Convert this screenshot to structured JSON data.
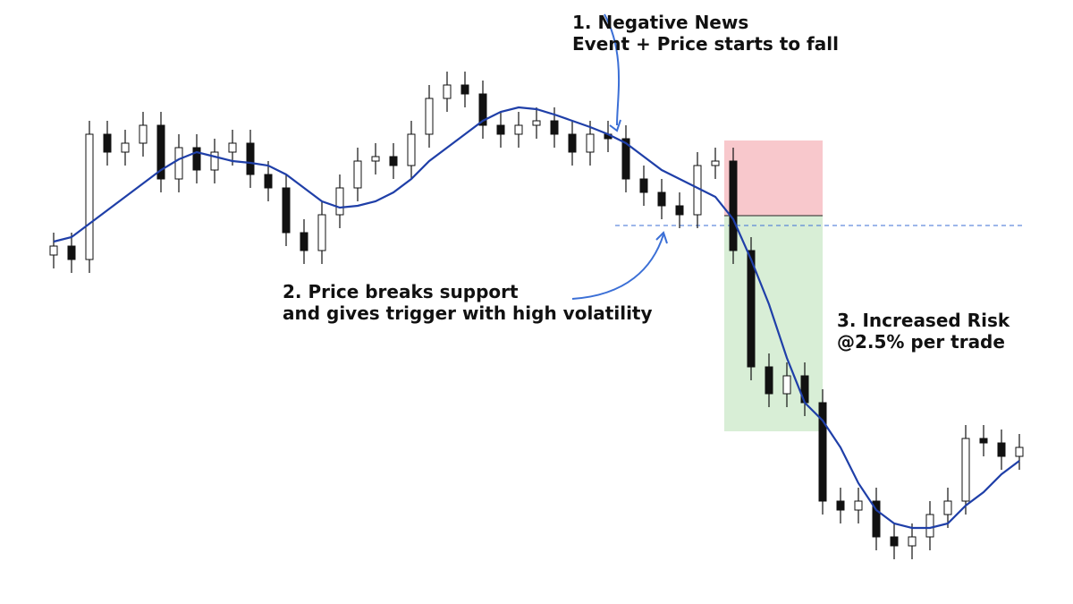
{
  "chart_data": {
    "type": "candlestick",
    "open": [
      390,
      400,
      385,
      525,
      505,
      515,
      535,
      475,
      510,
      485,
      505,
      515,
      480,
      465,
      415,
      395,
      435,
      465,
      495,
      500,
      490,
      525,
      565,
      580,
      570,
      535,
      525,
      535,
      540,
      525,
      505,
      525,
      520,
      475,
      460,
      445,
      435,
      490,
      495,
      395,
      265,
      235,
      255,
      225,
      115,
      105,
      115,
      75,
      65,
      75,
      100,
      115,
      185,
      180,
      165
    ],
    "high": [
      415,
      415,
      540,
      540,
      530,
      550,
      550,
      525,
      525,
      520,
      530,
      530,
      495,
      480,
      430,
      450,
      480,
      510,
      515,
      515,
      540,
      580,
      595,
      595,
      585,
      550,
      550,
      555,
      555,
      540,
      540,
      540,
      535,
      490,
      475,
      460,
      505,
      510,
      510,
      410,
      280,
      270,
      270,
      240,
      130,
      130,
      130,
      90,
      90,
      115,
      130,
      200,
      200,
      195,
      190
    ],
    "low": [
      375,
      370,
      370,
      490,
      490,
      500,
      460,
      460,
      470,
      470,
      490,
      465,
      450,
      400,
      380,
      380,
      420,
      450,
      480,
      475,
      475,
      510,
      550,
      555,
      520,
      510,
      510,
      520,
      510,
      490,
      490,
      505,
      460,
      445,
      430,
      420,
      420,
      475,
      380,
      250,
      220,
      220,
      210,
      100,
      90,
      90,
      60,
      50,
      50,
      60,
      85,
      100,
      165,
      150,
      150
    ],
    "close": [
      400,
      385,
      525,
      505,
      515,
      535,
      475,
      510,
      485,
      505,
      515,
      480,
      465,
      415,
      395,
      435,
      465,
      495,
      500,
      490,
      525,
      565,
      580,
      570,
      535,
      525,
      535,
      540,
      525,
      505,
      525,
      520,
      475,
      460,
      445,
      435,
      490,
      495,
      395,
      265,
      235,
      255,
      225,
      115,
      105,
      115,
      75,
      65,
      75,
      100,
      115,
      185,
      180,
      165,
      175
    ],
    "moving_average": {
      "color": "#1f3fa8",
      "values": [
        405,
        410,
        425,
        440,
        455,
        470,
        485,
        497,
        505,
        500,
        495,
        493,
        490,
        480,
        465,
        450,
        443,
        445,
        450,
        460,
        475,
        495,
        510,
        525,
        540,
        550,
        555,
        553,
        547,
        540,
        533,
        525,
        515,
        500,
        485,
        475,
        465,
        455,
        430,
        385,
        335,
        275,
        225,
        205,
        175,
        135,
        105,
        90,
        85,
        85,
        90,
        110,
        125,
        145,
        160
      ]
    },
    "support": 423,
    "stop_loss": 518,
    "entry": 434,
    "take_profit": 193,
    "ylim": [
      0,
      675
    ],
    "annotations": [
      {
        "lines": [
          "1. Negative News",
          "Event + Price starts to fall"
        ]
      },
      {
        "lines": [
          "2. Price breaks support",
          "and gives trigger with high volatility"
        ]
      },
      {
        "lines": [
          "3. Increased Risk",
          "@2.5% per trade"
        ]
      }
    ]
  }
}
